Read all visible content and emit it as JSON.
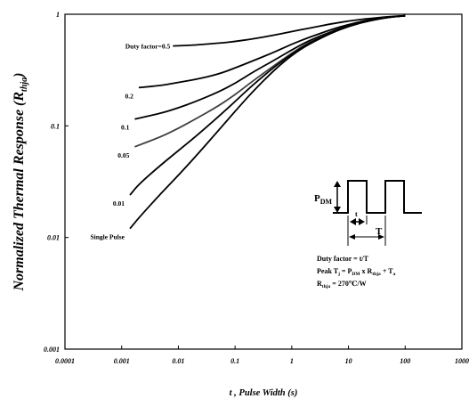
{
  "chart_data": {
    "type": "line",
    "title": "",
    "xlabel": "t , Pulse Width (s)",
    "ylabel": "Normalized Thermal Response (Rthja)",
    "ylabel_parts": {
      "main": "Normalized Thermal Response (R",
      "sub": "thja",
      "close": ")"
    },
    "x_scale": "log",
    "y_scale": "log",
    "xlim": [
      0.0001,
      1000
    ],
    "ylim": [
      0.001,
      1
    ],
    "x_tick_labels": [
      "0.0001",
      "0.001",
      "0.01",
      "0.1",
      "1",
      "10",
      "100",
      "1000"
    ],
    "y_tick_labels": [
      "0.001",
      "0.01",
      "0.1",
      "1"
    ],
    "grid": false,
    "series": [
      {
        "name": "Duty factor=0.5",
        "color": "#000000",
        "x": [
          0.008,
          0.02,
          0.05,
          0.1,
          0.2,
          0.5,
          1,
          2,
          5,
          10,
          20,
          50,
          100
        ],
        "y": [
          0.52,
          0.53,
          0.55,
          0.57,
          0.6,
          0.65,
          0.7,
          0.75,
          0.82,
          0.87,
          0.91,
          0.95,
          0.97
        ]
      },
      {
        "name": "0.2",
        "color": "#000000",
        "x": [
          0.002,
          0.005,
          0.01,
          0.02,
          0.05,
          0.1,
          0.2,
          0.5,
          1,
          2,
          5,
          10,
          20,
          50,
          100
        ],
        "y": [
          0.22,
          0.23,
          0.245,
          0.26,
          0.29,
          0.33,
          0.38,
          0.46,
          0.54,
          0.62,
          0.73,
          0.81,
          0.88,
          0.94,
          0.97
        ]
      },
      {
        "name": "0.1",
        "color": "#000000",
        "x": [
          0.0017,
          0.005,
          0.01,
          0.02,
          0.05,
          0.1,
          0.2,
          0.5,
          1,
          2,
          5,
          10,
          20,
          50,
          100
        ],
        "y": [
          0.115,
          0.13,
          0.145,
          0.165,
          0.2,
          0.24,
          0.3,
          0.39,
          0.48,
          0.58,
          0.7,
          0.79,
          0.87,
          0.94,
          0.97
        ]
      },
      {
        "name": "0.05",
        "color": "#404040",
        "x": [
          0.0017,
          0.005,
          0.01,
          0.02,
          0.05,
          0.1,
          0.2,
          0.5,
          1,
          2,
          5,
          10,
          20,
          50,
          100
        ],
        "y": [
          0.065,
          0.08,
          0.095,
          0.115,
          0.15,
          0.19,
          0.25,
          0.35,
          0.45,
          0.56,
          0.69,
          0.78,
          0.86,
          0.94,
          0.97
        ]
      },
      {
        "name": "0.01",
        "color": "#000000",
        "x": [
          0.0014,
          0.002,
          0.005,
          0.01,
          0.02,
          0.05,
          0.1,
          0.2,
          0.5,
          1,
          2,
          5,
          10,
          20,
          50,
          100
        ],
        "y": [
          0.024,
          0.03,
          0.045,
          0.06,
          0.08,
          0.12,
          0.165,
          0.23,
          0.34,
          0.44,
          0.55,
          0.69,
          0.78,
          0.86,
          0.94,
          0.97
        ]
      },
      {
        "name": "Single Pulse",
        "color": "#000000",
        "x": [
          0.0014,
          0.002,
          0.005,
          0.01,
          0.02,
          0.05,
          0.1,
          0.2,
          0.5,
          1,
          2,
          5,
          10,
          20,
          50,
          100
        ],
        "y": [
          0.012,
          0.015,
          0.025,
          0.036,
          0.053,
          0.09,
          0.135,
          0.2,
          0.32,
          0.43,
          0.54,
          0.68,
          0.78,
          0.86,
          0.94,
          0.97
        ]
      }
    ],
    "inset": {
      "pdm_label": {
        "main": "P",
        "sub": "DM"
      },
      "t_label": "t",
      "T_label": "T",
      "line1": "Duty factor = t/T",
      "line2": {
        "a": "Peak T",
        "a_sub": "j",
        "b": " = P",
        "b_sub": "DM",
        "c": " x R",
        "c_sub": "thja",
        "d": " + T",
        "d_sub": "a"
      },
      "line3": {
        "a": "R",
        "a_sub": "thja",
        "b": " = 270℃/W"
      }
    }
  }
}
